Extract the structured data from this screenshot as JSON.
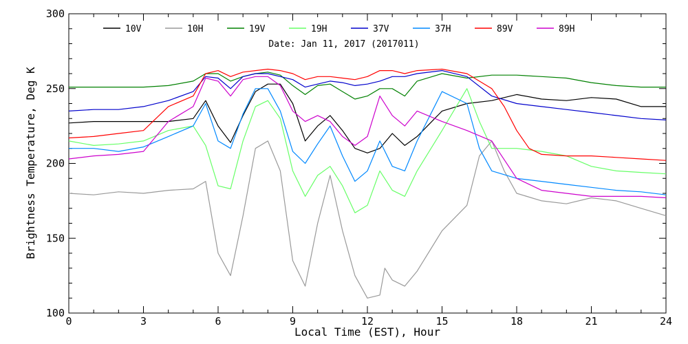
{
  "chart_data": {
    "type": "line",
    "title": "Date: Jan 11, 2017 (2017011)",
    "xlabel": "Local Time (EST), Hour",
    "ylabel": "Brightness Temperature, Deg K",
    "xlim": [
      0,
      24
    ],
    "ylim": [
      100,
      300
    ],
    "xticks": [
      0,
      3,
      6,
      9,
      12,
      15,
      18,
      21,
      24
    ],
    "yticks": [
      100,
      150,
      200,
      250,
      300
    ],
    "grid": false,
    "legend": "top",
    "series": [
      {
        "name": "10V",
        "color": "#000000",
        "x": [
          0,
          1,
          2,
          3,
          4,
          5,
          5.5,
          6,
          6.5,
          7,
          7.5,
          8,
          8.5,
          9,
          9.5,
          10,
          10.5,
          11,
          11.5,
          12,
          12.5,
          13,
          13.5,
          14,
          15,
          16,
          17,
          18,
          19,
          20,
          21,
          22,
          23,
          24
        ],
        "y": [
          227,
          228,
          228,
          228,
          228,
          230,
          242,
          225,
          214,
          232,
          248,
          253,
          253,
          240,
          215,
          225,
          232,
          222,
          210,
          207,
          210,
          220,
          212,
          218,
          235,
          240,
          242,
          246,
          243,
          242,
          244,
          243,
          238,
          238
        ]
      },
      {
        "name": "10H",
        "color": "#999999",
        "x": [
          0,
          1,
          2,
          3,
          4,
          5,
          5.5,
          6,
          6.5,
          7,
          7.5,
          8,
          8.5,
          9,
          9.5,
          10,
          10.5,
          11,
          11.5,
          12,
          12.5,
          12.7,
          13,
          13.5,
          14,
          15,
          16,
          16.5,
          17,
          17.5,
          18,
          19,
          20,
          21,
          22,
          23,
          24
        ],
        "y": [
          180,
          179,
          181,
          180,
          182,
          183,
          188,
          140,
          125,
          165,
          210,
          215,
          195,
          135,
          118,
          160,
          192,
          155,
          125,
          110,
          112,
          130,
          122,
          118,
          128,
          155,
          172,
          205,
          215,
          195,
          180,
          175,
          173,
          177,
          175,
          170,
          165
        ]
      },
      {
        "name": "19V",
        "color": "#008000",
        "x": [
          0,
          1,
          2,
          3,
          4,
          5,
          5.5,
          6,
          6.5,
          7,
          7.5,
          8,
          8.5,
          9,
          9.5,
          10,
          10.5,
          11,
          11.5,
          12,
          12.5,
          13,
          13.5,
          14,
          15,
          16,
          17,
          18,
          19,
          20,
          21,
          22,
          23,
          24
        ],
        "y": [
          251,
          251,
          251,
          251,
          252,
          255,
          260,
          260,
          255,
          258,
          260,
          261,
          259,
          252,
          246,
          252,
          253,
          248,
          243,
          245,
          250,
          250,
          245,
          255,
          260,
          257,
          259,
          259,
          258,
          257,
          254,
          252,
          251,
          251
        ]
      },
      {
        "name": "19H",
        "color": "#66ff66",
        "x": [
          0,
          1,
          2,
          3,
          4,
          5,
          5.5,
          6,
          6.5,
          7,
          7.5,
          8,
          8.5,
          9,
          9.5,
          10,
          10.5,
          11,
          11.5,
          12,
          12.5,
          13,
          13.5,
          14,
          15,
          16,
          16.5,
          17,
          18,
          19,
          20,
          21,
          22,
          23,
          24
        ],
        "y": [
          215,
          212,
          213,
          215,
          222,
          225,
          212,
          185,
          183,
          215,
          238,
          242,
          230,
          195,
          178,
          192,
          198,
          185,
          167,
          172,
          195,
          182,
          178,
          195,
          222,
          250,
          228,
          210,
          210,
          208,
          205,
          198,
          195,
          194,
          193
        ]
      },
      {
        "name": "37V",
        "color": "#0000cc",
        "x": [
          0,
          1,
          2,
          3,
          4,
          5,
          5.5,
          6,
          6.5,
          7,
          7.5,
          8,
          8.5,
          9,
          9.5,
          10,
          10.5,
          11,
          11.5,
          12,
          12.5,
          13,
          13.5,
          14,
          15,
          16,
          17,
          18,
          19,
          20,
          21,
          22,
          23,
          24
        ],
        "y": [
          235,
          236,
          236,
          238,
          242,
          248,
          258,
          257,
          250,
          258,
          260,
          260,
          258,
          256,
          251,
          253,
          255,
          254,
          252,
          253,
          255,
          258,
          258,
          260,
          262,
          258,
          245,
          240,
          238,
          236,
          234,
          232,
          230,
          229
        ]
      },
      {
        "name": "37H",
        "color": "#0088ff",
        "x": [
          0,
          1,
          2,
          3,
          4,
          5,
          5.5,
          6,
          6.5,
          7,
          7.5,
          8,
          8.5,
          9,
          9.5,
          10,
          10.5,
          11,
          11.5,
          12,
          12.5,
          13,
          13.5,
          14,
          15,
          16,
          16.5,
          17,
          18,
          19,
          20,
          21,
          22,
          23,
          24
        ],
        "y": [
          210,
          210,
          208,
          211,
          218,
          225,
          240,
          215,
          210,
          233,
          250,
          250,
          235,
          208,
          200,
          213,
          225,
          205,
          188,
          195,
          215,
          198,
          195,
          215,
          248,
          240,
          210,
          195,
          190,
          188,
          186,
          184,
          182,
          181,
          179
        ]
      },
      {
        "name": "89V",
        "color": "#ff0000",
        "x": [
          0,
          1,
          2,
          3,
          4,
          5,
          5.5,
          6,
          6.5,
          7,
          7.5,
          8,
          8.5,
          9,
          9.5,
          10,
          10.5,
          11,
          11.5,
          12,
          12.5,
          13,
          13.5,
          14,
          15,
          16,
          17,
          17.5,
          18,
          18.5,
          19,
          20,
          21,
          22,
          23,
          24
        ],
        "y": [
          217,
          218,
          220,
          222,
          238,
          245,
          260,
          262,
          258,
          261,
          262,
          263,
          262,
          260,
          256,
          258,
          258,
          257,
          256,
          258,
          262,
          262,
          260,
          262,
          263,
          260,
          250,
          238,
          222,
          210,
          206,
          205,
          205,
          204,
          203,
          202
        ]
      },
      {
        "name": "89H",
        "color": "#cc00cc",
        "x": [
          0,
          1,
          2,
          3,
          4,
          5,
          5.5,
          6,
          6.5,
          7,
          7.5,
          8,
          8.5,
          9,
          9.5,
          10,
          10.5,
          11,
          11.5,
          12,
          12.5,
          13,
          13.5,
          14,
          15,
          16,
          17,
          18,
          19,
          20,
          21,
          22,
          23,
          24
        ],
        "y": [
          203,
          205,
          206,
          208,
          228,
          238,
          257,
          255,
          245,
          256,
          258,
          258,
          252,
          235,
          228,
          232,
          228,
          218,
          212,
          218,
          245,
          232,
          225,
          235,
          228,
          222,
          215,
          190,
          182,
          180,
          178,
          178,
          178,
          177
        ]
      }
    ]
  }
}
